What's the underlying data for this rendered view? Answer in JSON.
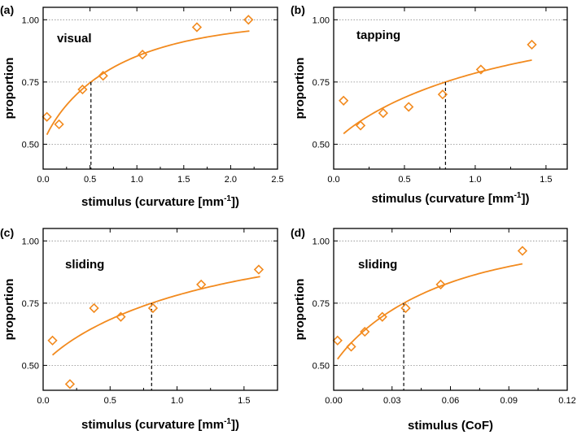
{
  "figure": {
    "background": "#ffffff",
    "accent": "#f28a1e"
  },
  "chart_data": [
    {
      "type": "scatter",
      "panel_label": "(a)",
      "condition": "visual",
      "xlabel": "stimulus (curvature [mm",
      "xlabel_sup": "-1",
      "xlabel_end": "])",
      "ylabel": "proportion",
      "xlim": [
        0,
        2.5
      ],
      "ylim": [
        0.4,
        1.05
      ],
      "xticks": [
        "0.0",
        "0.5",
        "1.0",
        "1.5",
        "2.0",
        "2.5"
      ],
      "xtick_values": [
        0,
        0.5,
        1.0,
        1.5,
        2.0,
        2.5
      ],
      "yticks": [
        "0.50",
        "0.75",
        "1.00"
      ],
      "ytick_values": [
        0.5,
        0.75,
        1.0
      ],
      "x": [
        0.04,
        0.17,
        0.42,
        0.64,
        1.06,
        1.64,
        2.19
      ],
      "y": [
        0.61,
        0.58,
        0.72,
        0.775,
        0.86,
        0.97,
        1.0
      ],
      "fit": {
        "model": "weibull",
        "threshold": 0.51,
        "slope": 0.85,
        "x_start": 0.04,
        "x_end": 2.2
      },
      "threshold_x": 0.51,
      "threshold_y": 0.75
    },
    {
      "type": "scatter",
      "panel_label": "(b)",
      "condition": "tapping",
      "xlabel": "stimulus (curvature [mm",
      "xlabel_sup": "-1",
      "xlabel_end": "])",
      "ylabel": "proportion",
      "xlim": [
        0,
        1.65
      ],
      "ylim": [
        0.4,
        1.05
      ],
      "xticks": [
        "0.0",
        "0.5",
        "1.0",
        "1.5"
      ],
      "xtick_values": [
        0,
        0.5,
        1.0,
        1.5
      ],
      "yticks": [
        "0.50",
        "0.75",
        "1.00"
      ],
      "ytick_values": [
        0.5,
        0.75,
        1.0
      ],
      "x": [
        0.07,
        0.19,
        0.35,
        0.53,
        0.77,
        1.04,
        1.4
      ],
      "y": [
        0.675,
        0.575,
        0.625,
        0.65,
        0.7,
        0.8,
        0.9
      ],
      "fit": {
        "model": "weibull",
        "threshold": 0.79,
        "slope": 0.85,
        "x_start": 0.07,
        "x_end": 1.4
      },
      "threshold_x": 0.79,
      "threshold_y": 0.75
    },
    {
      "type": "scatter",
      "panel_label": "(c)",
      "condition": "sliding",
      "xlabel": "stimulus (curvature [mm",
      "xlabel_sup": "-1",
      "xlabel_end": "])",
      "ylabel": "proportion",
      "xlim": [
        0,
        1.75
      ],
      "ylim": [
        0.4,
        1.05
      ],
      "xticks": [
        "0.0",
        "0.5",
        "1.0",
        "1.5"
      ],
      "xtick_values": [
        0,
        0.5,
        1.0,
        1.5
      ],
      "yticks": [
        "0.50",
        "0.75",
        "1.00"
      ],
      "ytick_values": [
        0.5,
        0.75,
        1.0
      ],
      "x": [
        0.07,
        0.2,
        0.38,
        0.58,
        0.82,
        1.18,
        1.61
      ],
      "y": [
        0.6,
        0.425,
        0.73,
        0.695,
        0.73,
        0.825,
        0.885
      ],
      "fit": {
        "model": "weibull",
        "threshold": 0.81,
        "slope": 0.85,
        "x_start": 0.07,
        "x_end": 1.62
      },
      "threshold_x": 0.81,
      "threshold_y": 0.75
    },
    {
      "type": "scatter",
      "panel_label": "(d)",
      "condition": "sliding",
      "xlabel": "stimulus (CoF)",
      "xlabel_sup": "",
      "xlabel_end": "",
      "ylabel": "proportion",
      "xlim": [
        0,
        0.12
      ],
      "ylim": [
        0.4,
        1.05
      ],
      "xticks": [
        "0.00",
        "0.03",
        "0.06",
        "0.09",
        "0.12"
      ],
      "xtick_values": [
        0,
        0.03,
        0.06,
        0.09,
        0.12
      ],
      "yticks": [
        "0.50",
        "0.75",
        "1.00"
      ],
      "ytick_values": [
        0.5,
        0.75,
        1.0
      ],
      "x": [
        0.002,
        0.009,
        0.016,
        0.025,
        0.037,
        0.055,
        0.097
      ],
      "y": [
        0.6,
        0.575,
        0.635,
        0.695,
        0.73,
        0.825,
        0.96
      ],
      "fit": {
        "model": "weibull",
        "threshold": 0.036,
        "slope": 0.9,
        "x_start": 0.002,
        "x_end": 0.097
      },
      "threshold_x": 0.036,
      "threshold_y": 0.75
    }
  ]
}
